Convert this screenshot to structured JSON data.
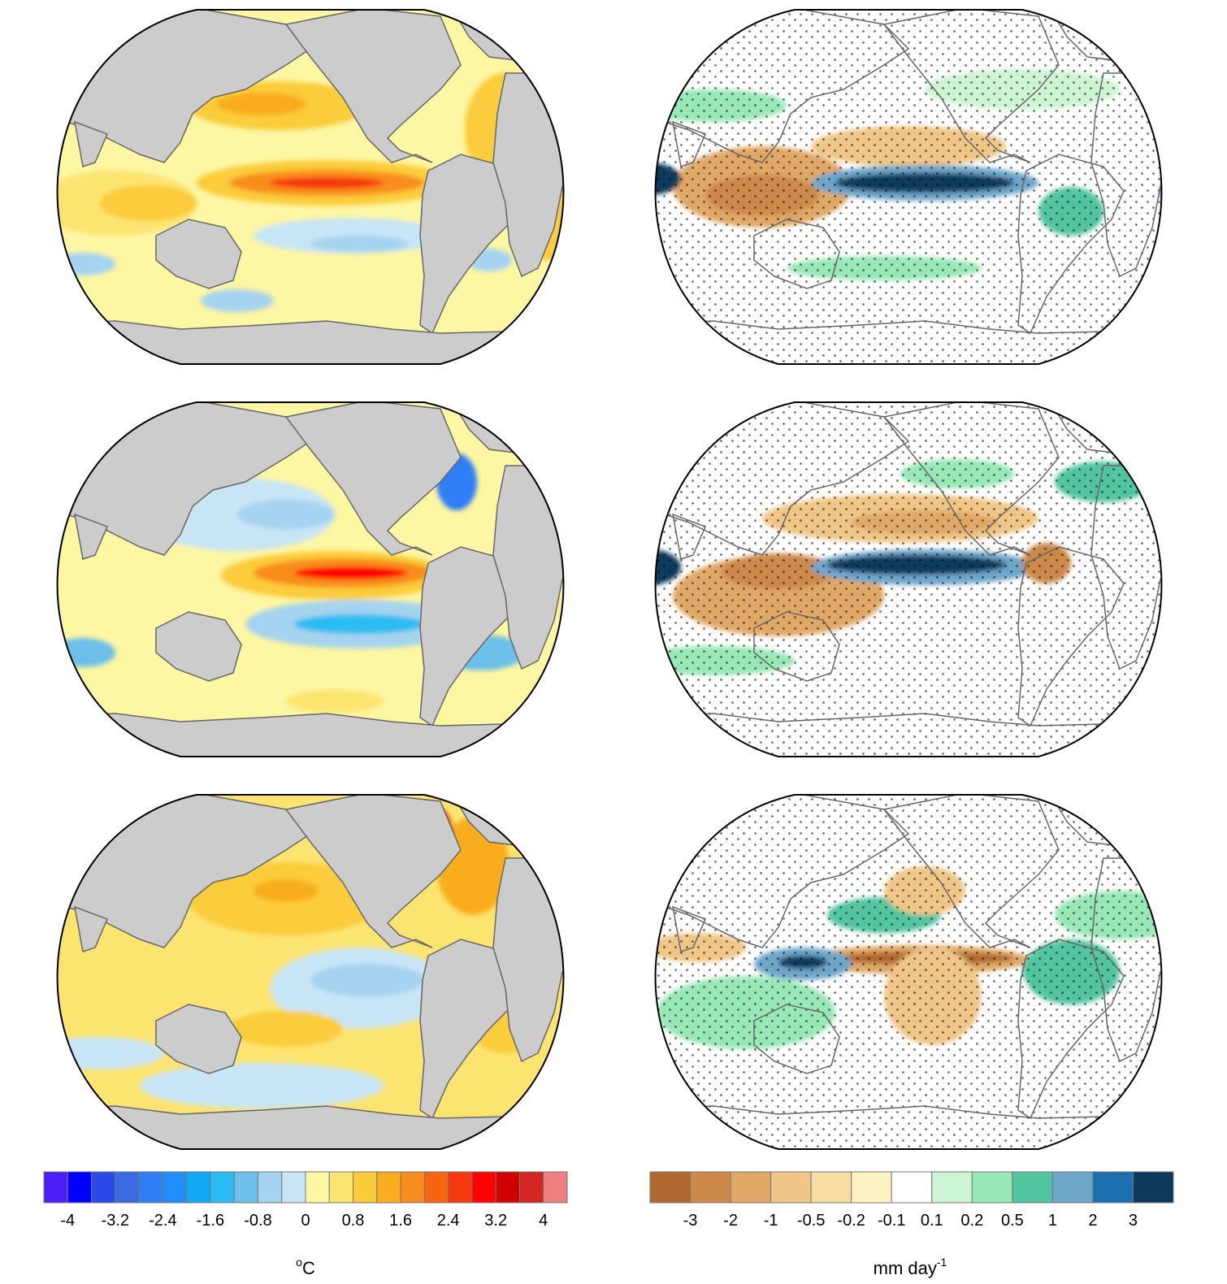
{
  "chart_data": [
    {
      "type": "heatmap",
      "title": "",
      "description_role": "sea surface temperature anomaly maps (left column, 3 panels)",
      "panels": 3,
      "projection": "Winkel-like global, Pacific centered",
      "colorbar": {
        "ticks": [
          "-4",
          "-3.2",
          "-2.4",
          "-1.6",
          "-0.8",
          "0",
          "0.8",
          "1.6",
          "2.4",
          "3.2",
          "4"
        ],
        "unit_base": "o",
        "unit_rest": "C",
        "colors": [
          "#4b1ef5",
          "#0000ff",
          "#2a4ae8",
          "#3a6be0",
          "#2e7ff5",
          "#1f8ef8",
          "#12a9f5",
          "#2bbcf3",
          "#6cbfe8",
          "#a6d3ef",
          "#c8e5f6",
          "#fdf6a2",
          "#fce471",
          "#fbcc3a",
          "#f9ad1f",
          "#f88d1c",
          "#f76513",
          "#f5380e",
          "#ff0000",
          "#d10000",
          "#d42525",
          "#f08080"
        ]
      },
      "land_color": "#cccccc"
    },
    {
      "type": "heatmap",
      "title": "",
      "description_role": "precipitation anomaly maps (right column, 3 panels)",
      "panels": 3,
      "colorbar": {
        "ticks": [
          "-3",
          "-2",
          "-1",
          "-0.5",
          "-0.2",
          "-0.1",
          "0.1",
          "0.2",
          "0.5",
          "1",
          "2",
          "3"
        ],
        "unit_base": "mm day",
        "unit_sup": "-1",
        "colors": [
          "#b0692e",
          "#cc894a",
          "#e0a866",
          "#efc687",
          "#f5dca0",
          "#fcf1c3",
          "#ffffff",
          "#cdf4d3",
          "#98e7b6",
          "#53c4a0",
          "#6ea6c9",
          "#1c6fae",
          "#0d3a5c"
        ]
      }
    }
  ]
}
